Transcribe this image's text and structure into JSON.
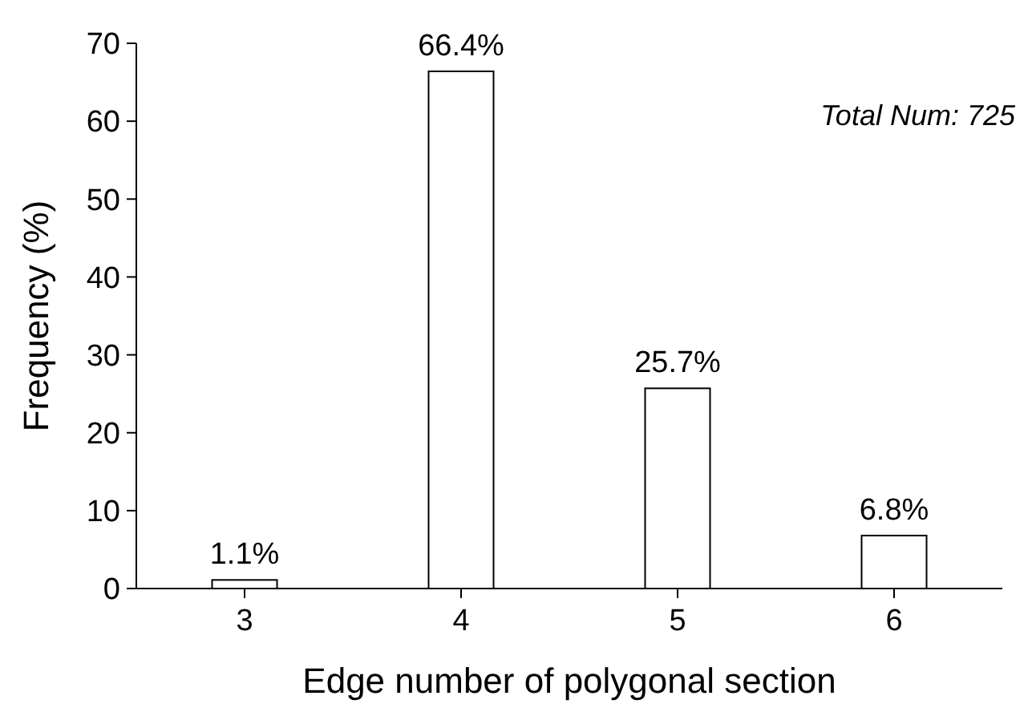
{
  "chart_data": {
    "type": "bar",
    "xlabel": "Edge number of polygonal section",
    "ylabel": "Frequency (%)",
    "categories": [
      "3",
      "4",
      "5",
      "6"
    ],
    "values": [
      1.1,
      66.4,
      25.7,
      6.8
    ],
    "value_labels": [
      "1.1%",
      "66.4%",
      "25.7%",
      "6.8%"
    ],
    "color": "#ffffff",
    "ylim": [
      0,
      70
    ],
    "yticks": [
      0,
      10,
      20,
      30,
      40,
      50,
      60,
      70
    ],
    "grid": false,
    "annotations": [
      "Total Num: 725"
    ]
  }
}
